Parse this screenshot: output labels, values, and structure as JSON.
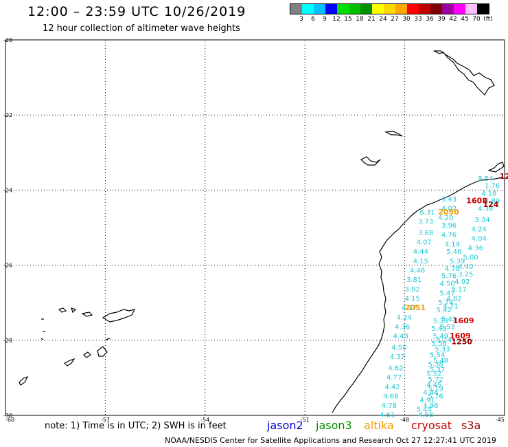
{
  "header": {
    "title": "12:00 – 23:59 UTC 10/26/2019",
    "subtitle": "12 hour collection of altimeter wave heights"
  },
  "legend": {
    "colors": [
      "#808080",
      "#00ffff",
      "#00c0ff",
      "#0000ff",
      "#00e000",
      "#00c000",
      "#009000",
      "#ffff00",
      "#ffd700",
      "#ffa500",
      "#ff0000",
      "#c00000",
      "#800000",
      "#a000a0",
      "#ff00ff",
      "#ffc0ff",
      "#000000"
    ],
    "labels": [
      "3",
      "6",
      "9",
      "12",
      "15",
      "18",
      "21",
      "24",
      "27",
      "30",
      "33",
      "36",
      "39",
      "42",
      "45",
      "70",
      "(ft)"
    ]
  },
  "axes": {
    "lat_labels": [
      "-20",
      "-22",
      "-24",
      "-26",
      "-28",
      "-30"
    ],
    "lon_labels": [
      "-60",
      "-57",
      "-54",
      "-51",
      "-48",
      "-45"
    ]
  },
  "track_colors": {
    "cyan": "#1cc8d4",
    "orange": "#f59a00",
    "red": "#cc0000",
    "darkred": "#990000"
  },
  "swh_points": [
    {
      "text": "8.54",
      "color": "cyan",
      "lon": -45.8,
      "lat": -23.75
    },
    {
      "text": "1.76",
      "color": "cyan",
      "lon": -45.6,
      "lat": -23.95
    },
    {
      "text": "4.18",
      "color": "cyan",
      "lon": -45.7,
      "lat": -24.15
    },
    {
      "text": "3.89",
      "color": "cyan",
      "lon": -45.6,
      "lat": -24.35
    },
    {
      "text": "4.38",
      "color": "cyan",
      "lon": -45.8,
      "lat": -24.55
    },
    {
      "text": "3.43",
      "color": "cyan",
      "lon": -46.9,
      "lat": -24.3
    },
    {
      "text": "4.02",
      "color": "cyan",
      "lon": -46.9,
      "lat": -24.55
    },
    {
      "text": "4.20",
      "color": "cyan",
      "lon": -47.0,
      "lat": -24.8
    },
    {
      "text": "6.31",
      "color": "cyan",
      "lon": -47.55,
      "lat": -24.65
    },
    {
      "text": "3.34",
      "color": "cyan",
      "lon": -45.9,
      "lat": -24.85
    },
    {
      "text": "3.73",
      "color": "cyan",
      "lon": -47.6,
      "lat": -24.9
    },
    {
      "text": "3.96",
      "color": "cyan",
      "lon": -46.9,
      "lat": -25.0
    },
    {
      "text": "4.24",
      "color": "cyan",
      "lon": -46.0,
      "lat": -25.1
    },
    {
      "text": "3.68",
      "color": "cyan",
      "lon": -47.6,
      "lat": -25.2
    },
    {
      "text": "4.76",
      "color": "cyan",
      "lon": -46.9,
      "lat": -25.25
    },
    {
      "text": "4.04",
      "color": "cyan",
      "lon": -46.0,
      "lat": -25.35
    },
    {
      "text": "4.07",
      "color": "cyan",
      "lon": -47.65,
      "lat": -25.45
    },
    {
      "text": "4.14",
      "color": "cyan",
      "lon": -46.8,
      "lat": -25.5
    },
    {
      "text": "4.36",
      "color": "cyan",
      "lon": -46.1,
      "lat": -25.6
    },
    {
      "text": "4.44",
      "color": "cyan",
      "lon": -47.75,
      "lat": -25.7
    },
    {
      "text": "5.46",
      "color": "cyan",
      "lon": -46.75,
      "lat": -25.7
    },
    {
      "text": "5.00",
      "color": "cyan",
      "lon": -46.25,
      "lat": -25.85
    },
    {
      "text": "5.39",
      "color": "cyan",
      "lon": -46.65,
      "lat": -25.95
    },
    {
      "text": "4.15",
      "color": "cyan",
      "lon": -47.75,
      "lat": -25.95
    },
    {
      "text": "4.40",
      "color": "cyan",
      "lon": -46.4,
      "lat": -26.1
    },
    {
      "text": "4.78",
      "color": "cyan",
      "lon": -46.8,
      "lat": -26.15
    },
    {
      "text": "4.46",
      "color": "cyan",
      "lon": -47.85,
      "lat": -26.2
    },
    {
      "text": "3.25",
      "color": "cyan",
      "lon": -46.4,
      "lat": -26.3
    },
    {
      "text": "5.76",
      "color": "cyan",
      "lon": -46.9,
      "lat": -26.35
    },
    {
      "text": "3.81",
      "color": "cyan",
      "lon": -47.95,
      "lat": -26.45
    },
    {
      "text": "4.92",
      "color": "cyan",
      "lon": -46.5,
      "lat": -26.5
    },
    {
      "text": "4.50",
      "color": "cyan",
      "lon": -46.95,
      "lat": -26.55
    },
    {
      "text": "5.17",
      "color": "cyan",
      "lon": -46.6,
      "lat": -26.7
    },
    {
      "text": "3.92",
      "color": "cyan",
      "lon": -48.0,
      "lat": -26.7
    },
    {
      "text": "5.47",
      "color": "cyan",
      "lon": -46.95,
      "lat": -26.8
    },
    {
      "text": "4.82",
      "color": "cyan",
      "lon": -46.75,
      "lat": -26.95
    },
    {
      "text": "4.15",
      "color": "cyan",
      "lon": -48.0,
      "lat": -26.95
    },
    {
      "text": "5.74",
      "color": "cyan",
      "lon": -47.0,
      "lat": -27.05
    },
    {
      "text": "4.71",
      "color": "cyan",
      "lon": -46.85,
      "lat": -27.15
    },
    {
      "text": "4.27",
      "color": "cyan",
      "lon": -48.1,
      "lat": -27.2
    },
    {
      "text": "5.42",
      "color": "cyan",
      "lon": -47.05,
      "lat": -27.25
    },
    {
      "text": "4.24",
      "color": "cyan",
      "lon": -48.25,
      "lat": -27.45
    },
    {
      "text": "5.42",
      "color": "cyan",
      "lon": -46.9,
      "lat": -27.5
    },
    {
      "text": "5.33",
      "color": "cyan",
      "lon": -47.15,
      "lat": -27.55
    },
    {
      "text": "4.36",
      "color": "cyan",
      "lon": -48.3,
      "lat": -27.7
    },
    {
      "text": "5.53",
      "color": "cyan",
      "lon": -46.95,
      "lat": -27.7
    },
    {
      "text": "5.43",
      "color": "cyan",
      "lon": -47.2,
      "lat": -27.75
    },
    {
      "text": "4.43",
      "color": "cyan",
      "lon": -48.35,
      "lat": -27.95
    },
    {
      "text": "5.49",
      "color": "cyan",
      "lon": -47.15,
      "lat": -27.95
    },
    {
      "text": "5.24",
      "color": "cyan",
      "lon": -47.05,
      "lat": -28.05
    },
    {
      "text": "5.56",
      "color": "cyan",
      "lon": -47.2,
      "lat": -28.15
    },
    {
      "text": "4.50",
      "color": "cyan",
      "lon": -48.4,
      "lat": -28.25
    },
    {
      "text": "5.33",
      "color": "cyan",
      "lon": -47.1,
      "lat": -28.3
    },
    {
      "text": "5.54",
      "color": "cyan",
      "lon": -47.25,
      "lat": -28.45
    },
    {
      "text": "4.37",
      "color": "cyan",
      "lon": -48.45,
      "lat": -28.5
    },
    {
      "text": "5.48",
      "color": "cyan",
      "lon": -47.15,
      "lat": -28.6
    },
    {
      "text": "5.38",
      "color": "cyan",
      "lon": -47.3,
      "lat": -28.7
    },
    {
      "text": "4.62",
      "color": "cyan",
      "lon": -48.5,
      "lat": -28.8
    },
    {
      "text": "5.37",
      "color": "cyan",
      "lon": -47.25,
      "lat": -28.85
    },
    {
      "text": "5.52",
      "color": "cyan",
      "lon": -47.35,
      "lat": -28.95
    },
    {
      "text": "4.77",
      "color": "cyan",
      "lon": -48.55,
      "lat": -29.05
    },
    {
      "text": "5.72",
      "color": "cyan",
      "lon": -47.3,
      "lat": -29.1
    },
    {
      "text": "4.45",
      "color": "cyan",
      "lon": -47.35,
      "lat": -29.25
    },
    {
      "text": "4.42",
      "color": "cyan",
      "lon": -48.6,
      "lat": -29.3
    },
    {
      "text": "5.19",
      "color": "cyan",
      "lon": -47.3,
      "lat": -29.35
    },
    {
      "text": "4.44",
      "color": "cyan",
      "lon": -47.45,
      "lat": -29.45
    },
    {
      "text": "4.68",
      "color": "cyan",
      "lon": -48.65,
      "lat": -29.55
    },
    {
      "text": "5.76",
      "color": "cyan",
      "lon": -47.3,
      "lat": -29.55
    },
    {
      "text": "4.91",
      "color": "cyan",
      "lon": -47.55,
      "lat": -29.65
    },
    {
      "text": "4.78",
      "color": "cyan",
      "lon": -48.7,
      "lat": -29.8
    },
    {
      "text": "4.96",
      "color": "cyan",
      "lon": -47.45,
      "lat": -29.8
    },
    {
      "text": "5.44",
      "color": "cyan",
      "lon": -47.65,
      "lat": -29.9
    },
    {
      "text": "4.61",
      "color": "cyan",
      "lon": -48.75,
      "lat": -30.05
    },
    {
      "text": "4.58",
      "color": "cyan",
      "lon": -47.6,
      "lat": -30.05
    },
    {
      "text": "2050",
      "color": "orange",
      "lon": -47.0,
      "lat": -24.65
    },
    {
      "text": "2051",
      "color": "orange",
      "lon": -48.0,
      "lat": -27.2
    },
    {
      "text": "1608",
      "color": "red",
      "lon": -46.15,
      "lat": -24.35
    },
    {
      "text": "1609",
      "color": "red",
      "lon": -46.55,
      "lat": -27.55
    },
    {
      "text": "1609",
      "color": "red",
      "lon": -46.65,
      "lat": -27.95
    },
    {
      "text": "1250",
      "color": "darkred",
      "lon": -46.6,
      "lat": -28.1
    },
    {
      "text": "124",
      "color": "darkred",
      "lon": -45.65,
      "lat": -24.45
    },
    {
      "text": "12",
      "color": "darkred",
      "lon": -45.15,
      "lat": -23.7
    }
  ],
  "footer": {
    "note": "note: 1) Time is in UTC; 2) SWH is in feet",
    "satellites": [
      {
        "name": "jason2",
        "color": "#0000cc"
      },
      {
        "name": "jason3",
        "color": "#009000"
      },
      {
        "name": "altika",
        "color": "#f59a00"
      },
      {
        "name": "cryosat",
        "color": "#cc0000"
      },
      {
        "name": "s3a",
        "color": "#990000"
      }
    ],
    "credit": "NOAA/NESDIS Center for Satellite Applications and Research    Oct 27 12:27:41 UTC 2019"
  }
}
